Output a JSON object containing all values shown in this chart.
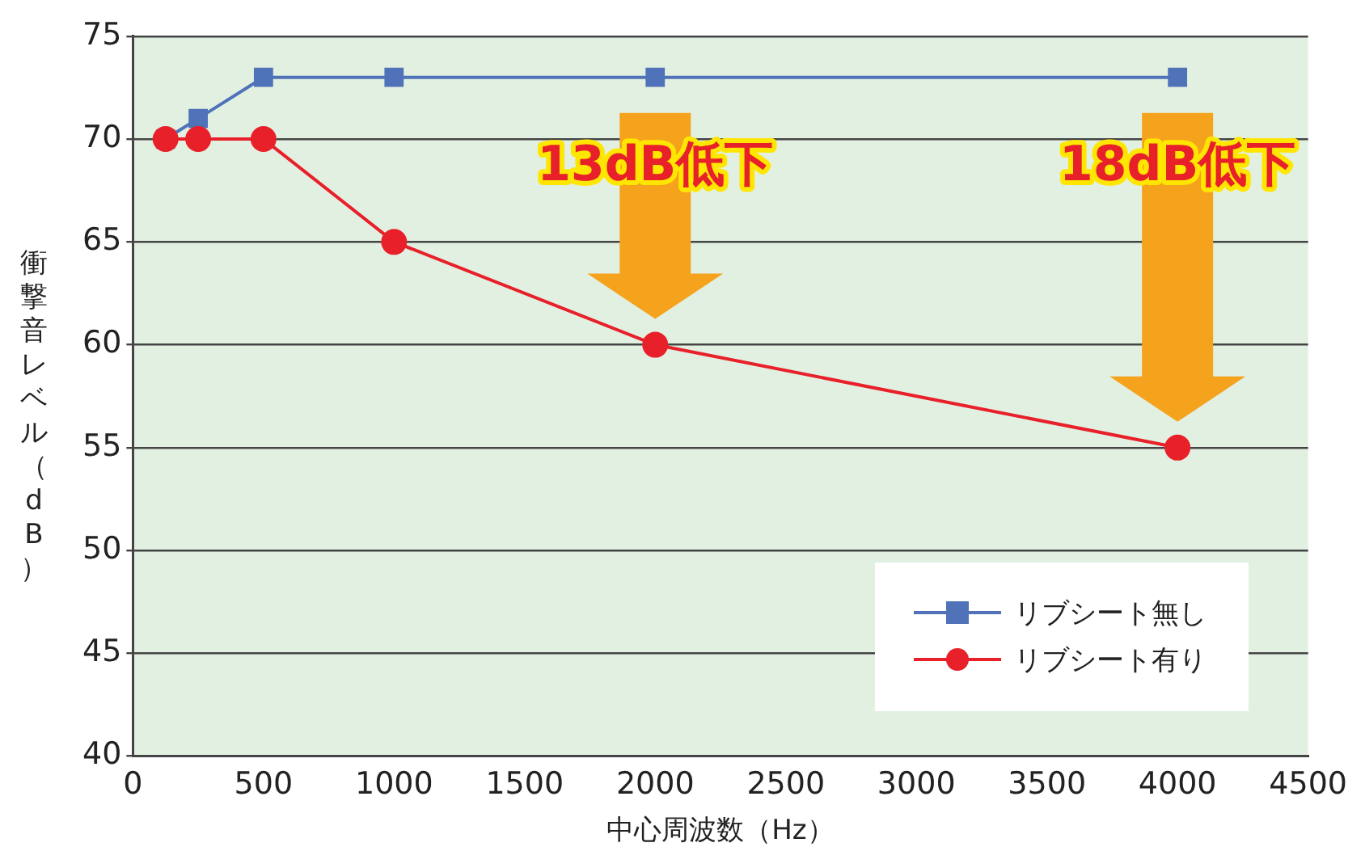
{
  "chart_data": {
    "type": "line",
    "xlabel": "中心周波数（Hz）",
    "ylabel": "衝撃音レベル（dB）",
    "xlim": [
      0,
      4500
    ],
    "xticks": [
      0,
      500,
      1000,
      1500,
      2000,
      2500,
      3000,
      3500,
      4000,
      4500
    ],
    "ylim": [
      40,
      75
    ],
    "yticks": [
      40,
      45,
      50,
      55,
      60,
      65,
      70,
      75
    ],
    "grid": "y",
    "legend": "bottom right",
    "line_style": "solid",
    "series": [
      {
        "name": "リブシート無し",
        "color": "#4f72b8",
        "marker": "square",
        "x": [
          125,
          250,
          500,
          1000,
          2000,
          4000
        ],
        "values": [
          70,
          71,
          73,
          73,
          73,
          73
        ]
      },
      {
        "name": "リブシート有り",
        "color": "#e8202a",
        "marker": "circle",
        "x": [
          125,
          250,
          500,
          1000,
          2000,
          4000
        ],
        "values": [
          70,
          70,
          70,
          65,
          60,
          55
        ]
      }
    ],
    "annotations": [
      "13dB低下",
      "18dB低下"
    ]
  }
}
